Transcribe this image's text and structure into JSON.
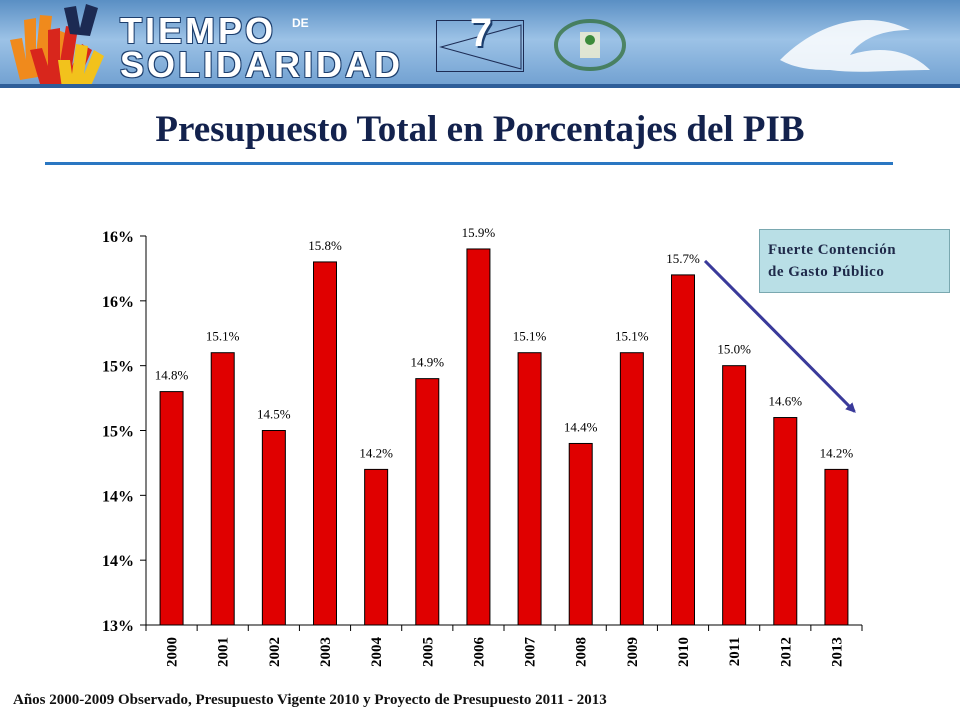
{
  "header": {
    "logo_line1": "TIEMPO",
    "logo_de": "DE",
    "logo_line2": "SOLIDARIDAD",
    "slide_number": "7"
  },
  "title": "Presupuesto Total en Porcentajes del PIB",
  "annotation": {
    "line1": "Fuerte Contención",
    "line2": "de Gasto Público"
  },
  "footnote": "Años 2000-2009 Observado, Presupuesto Vigente 2010 y Proyecto de Presupuesto 2011 - 2013",
  "colors": {
    "bar": "#e00000",
    "arrow": "#3a3a9a",
    "title": "#13224d",
    "underline": "#2a77c2",
    "annotation_bg": "#b9dfe6"
  },
  "chart_data": {
    "type": "bar",
    "categories": [
      "2000",
      "2001",
      "2002",
      "2003",
      "2004",
      "2005",
      "2006",
      "2007",
      "2008",
      "2009",
      "2010",
      "2011",
      "2012",
      "2013"
    ],
    "values": [
      14.8,
      15.1,
      14.5,
      15.8,
      14.2,
      14.9,
      15.9,
      15.1,
      14.4,
      15.1,
      15.7,
      15.0,
      14.6,
      14.2
    ],
    "data_labels": [
      "14.8%",
      "15.1%",
      "14.5%",
      "15.8%",
      "14.2%",
      "14.9%",
      "15.9%",
      "15.1%",
      "14.4%",
      "15.1%",
      "15.7%",
      "15.0%",
      "14.6%",
      "14.2%"
    ],
    "y_tick_labels": [
      "13%",
      "14%",
      "14%",
      "15%",
      "15%",
      "16%",
      "16%"
    ],
    "y_tick_values": [
      13.0,
      13.5,
      14.0,
      14.5,
      15.0,
      15.5,
      16.0
    ],
    "ylim": [
      13.0,
      16.0
    ],
    "xlabel": "",
    "ylabel": "",
    "grid": false,
    "legend": "none",
    "trend_arrow": {
      "from_category": "2010",
      "to_category": "2013"
    }
  }
}
